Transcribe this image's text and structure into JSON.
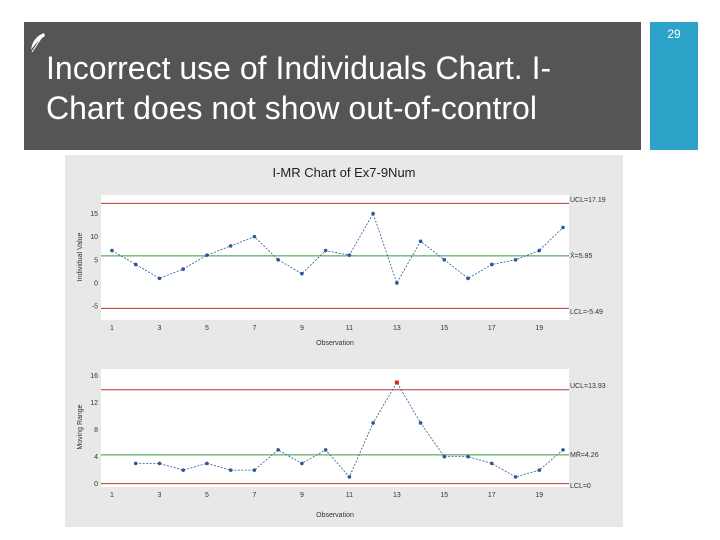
{
  "slide": {
    "number": "29",
    "title": "Incorrect use of Individuals Chart. I-Chart does not show out-of-control",
    "colors": {
      "title_bar": "#555555",
      "accent": "#2ea3c9",
      "text": "#ffffff"
    }
  },
  "chart_data": [
    {
      "type": "line",
      "title": "I-MR Chart of Ex7-9Num",
      "xlabel": "Observation",
      "ylabel": "Individual Value",
      "x": [
        1,
        2,
        3,
        4,
        5,
        6,
        7,
        8,
        9,
        10,
        11,
        12,
        13,
        14,
        15,
        16,
        17,
        18,
        19,
        20
      ],
      "xticks": [
        1,
        3,
        5,
        7,
        9,
        11,
        13,
        15,
        17,
        19
      ],
      "yticks": [
        -5,
        0,
        5,
        10,
        15
      ],
      "ylim": [
        -8,
        19
      ],
      "values": [
        7,
        4,
        1,
        3,
        6,
        8,
        10,
        5,
        2,
        7,
        6,
        15,
        0,
        9,
        5,
        1,
        4,
        5,
        7,
        12
      ],
      "control_lines": {
        "ucl": "UCL=17.19",
        "center": "X̄=5.85",
        "lcl": "LCL=-5.49"
      },
      "control_values": {
        "ucl": 17.19,
        "center": 5.85,
        "lcl": -5.49
      },
      "colors": {
        "series": "#2b5797",
        "center": "#3a9a3a",
        "limit": "#b03a2e",
        "out_of_control": "#dd2222"
      }
    },
    {
      "type": "line",
      "xlabel": "Observation",
      "ylabel": "Moving Range",
      "x": [
        2,
        3,
        4,
        5,
        6,
        7,
        8,
        9,
        10,
        11,
        12,
        13,
        14,
        15,
        16,
        17,
        18,
        19,
        20
      ],
      "xticks": [
        1,
        3,
        5,
        7,
        9,
        11,
        13,
        15,
        17,
        19
      ],
      "yticks": [
        0,
        4,
        8,
        12,
        16
      ],
      "ylim": [
        -0.5,
        17
      ],
      "values": [
        3,
        3,
        2,
        3,
        2,
        2,
        5,
        3,
        5,
        1,
        9,
        15,
        9,
        4,
        4,
        3,
        1,
        2,
        5
      ],
      "out_of_control_index": 11,
      "control_lines": {
        "ucl": "UCL=13.93",
        "center": "MR̄=4.26",
        "lcl": "LCL=0"
      },
      "control_values": {
        "ucl": 13.93,
        "center": 4.26,
        "lcl": 0
      }
    }
  ]
}
